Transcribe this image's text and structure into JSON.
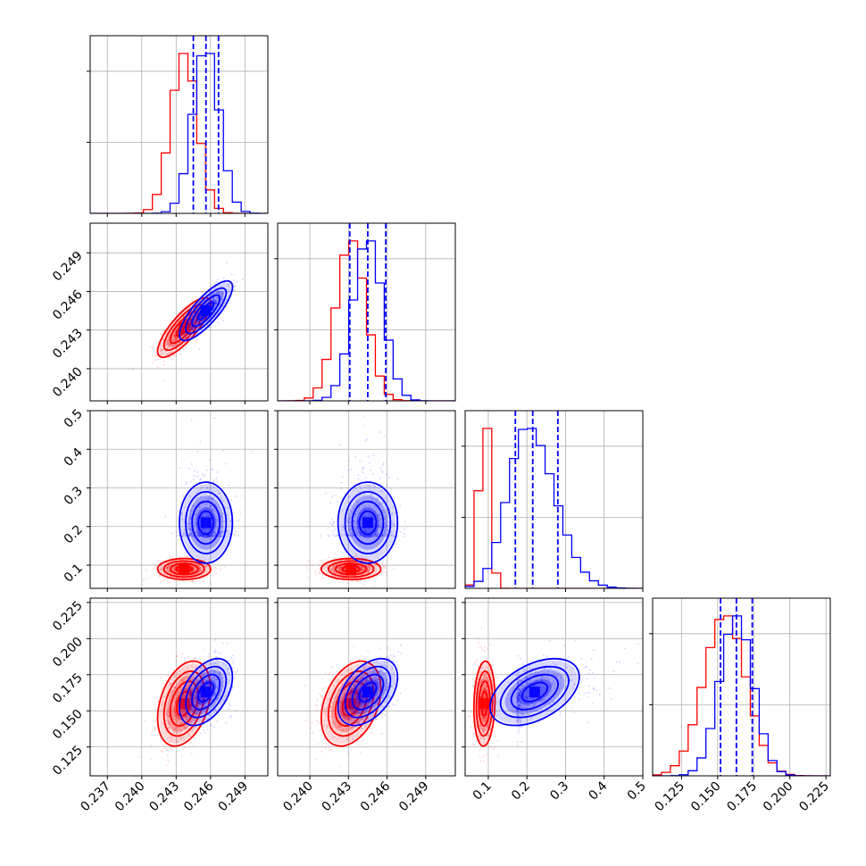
{
  "chart_data": {
    "type": "corner",
    "grid": true,
    "series": [
      {
        "name": "",
        "color": "#ff0000"
      },
      {
        "name": "",
        "color": "#0000ff"
      }
    ],
    "parameters": [
      {
        "id": "p1",
        "lim": [
          0.2355,
          0.251
        ],
        "ticks": [
          0.237,
          0.24,
          0.243,
          0.246,
          0.249
        ],
        "tick_labels": [
          "0.237",
          "0.240",
          "0.243",
          "0.246",
          "0.249"
        ]
      },
      {
        "id": "p2",
        "lim": [
          0.2375,
          0.2513
        ],
        "ticks": [
          0.24,
          0.243,
          0.246,
          0.249
        ],
        "tick_labels": [
          "0.240",
          "0.243",
          "0.246",
          "0.249"
        ]
      },
      {
        "id": "p3",
        "lim": [
          0.04,
          0.5
        ],
        "ticks": [
          0.1,
          0.2,
          0.3,
          0.4,
          0.5
        ],
        "tick_labels": [
          "0.1",
          "0.2",
          "0.3",
          "0.4",
          "0.5"
        ]
      },
      {
        "id": "p4",
        "lim": [
          0.105,
          0.228
        ],
        "ticks": [
          0.125,
          0.15,
          0.175,
          0.2,
          0.225
        ],
        "tick_labels": [
          "0.125",
          "0.150",
          "0.175",
          "0.200",
          "0.225"
        ]
      }
    ],
    "quantiles": [
      [
        0.2445,
        0.2456,
        0.2467
      ],
      [
        0.2431,
        0.2445,
        0.2459
      ],
      [
        0.17,
        0.215,
        0.28
      ],
      [
        0.152,
        0.163,
        0.174
      ]
    ],
    "distributions": {
      "red": {
        "mean": [
          0.2437,
          0.2432,
          0.09,
          0.155
        ],
        "sd": [
          0.0011,
          0.0011,
          0.013,
          0.014
        ],
        "corr": {
          "0_1": 0.8,
          "0_3": 0.35,
          "1_3": 0.35,
          "2_3": 0.1
        }
      },
      "blue": {
        "mean": [
          0.2456,
          0.2445,
          0.22,
          0.163
        ],
        "sd": [
          0.0011,
          0.0011,
          0.055,
          0.011
        ],
        "corr": {
          "0_1": 0.8,
          "0_3": 0.45,
          "1_3": 0.45,
          "2_3": 0.45
        }
      }
    }
  }
}
